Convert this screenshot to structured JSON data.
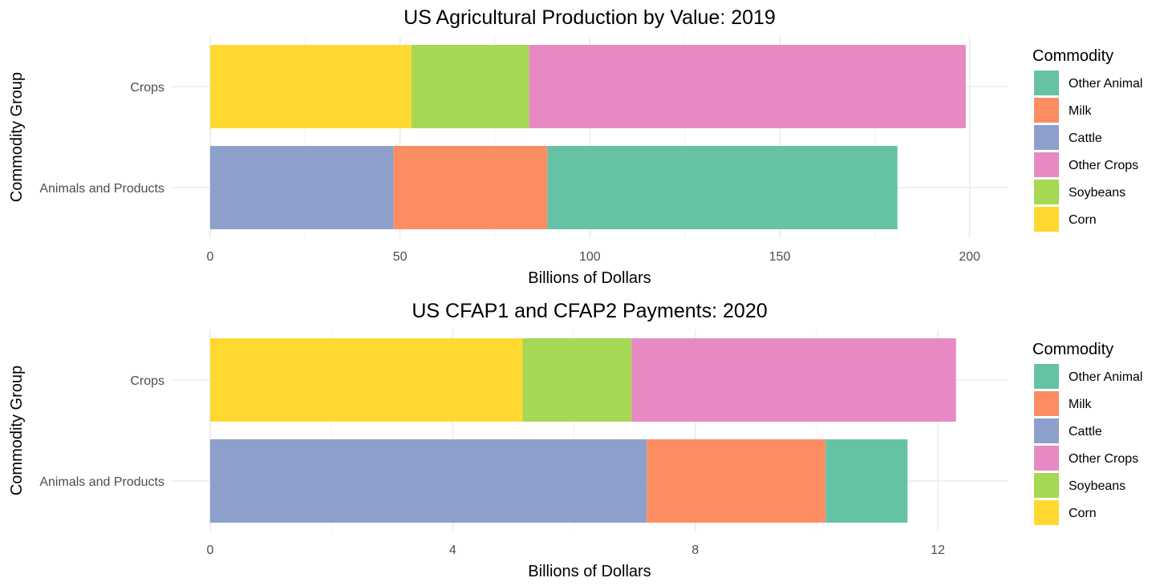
{
  "colors": {
    "Other Animal": "#66c2a5",
    "Milk": "#fc8d62",
    "Cattle": "#8da0cb",
    "Other Crops": "#e78ac3",
    "Soybeans": "#a6d854",
    "Corn": "#ffd92f"
  },
  "chart_data": [
    {
      "type": "bar",
      "orientation": "horizontal",
      "stacked": true,
      "title": "US Agricultural Production by Value: 2019",
      "xlabel": "Billions of Dollars",
      "ylabel": "Commodity Group",
      "xlim": [
        0,
        210
      ],
      "xticks": [
        0,
        50,
        100,
        150,
        200
      ],
      "xtick_labels": [
        "0",
        "50",
        "100",
        "150",
        "200"
      ],
      "categories": [
        "Crops",
        "Animals and Products"
      ],
      "legend_title": "Commodity",
      "legend": [
        "Other Animal",
        "Milk",
        "Cattle",
        "Other Crops",
        "Soybeans",
        "Corn"
      ],
      "legend_position": "right",
      "grid": true,
      "bars": [
        {
          "category": "Crops",
          "segments": [
            {
              "name": "Corn",
              "value": 53
            },
            {
              "name": "Soybeans",
              "value": 31
            },
            {
              "name": "Other Crops",
              "value": 115
            }
          ]
        },
        {
          "category": "Animals and Products",
          "segments": [
            {
              "name": "Cattle",
              "value": 48.3
            },
            {
              "name": "Milk",
              "value": 40.5
            },
            {
              "name": "Other Animal",
              "value": 92.2
            }
          ]
        }
      ]
    },
    {
      "type": "bar",
      "orientation": "horizontal",
      "stacked": true,
      "title": "US CFAP1 and CFAP2 Payments: 2020",
      "xlabel": "Billions of Dollars",
      "ylabel": "Commodity Group",
      "xlim": [
        0,
        13.15
      ],
      "xticks": [
        0,
        4,
        8,
        12
      ],
      "xtick_labels": [
        "0",
        "4",
        "8",
        "12"
      ],
      "categories": [
        "Crops",
        "Animals and Products"
      ],
      "legend_title": "Commodity",
      "legend": [
        "Other Animal",
        "Milk",
        "Cattle",
        "Other Crops",
        "Soybeans",
        "Corn"
      ],
      "legend_position": "right",
      "grid": true,
      "bars": [
        {
          "category": "Crops",
          "segments": [
            {
              "name": "Corn",
              "value": 5.15
            },
            {
              "name": "Soybeans",
              "value": 1.8
            },
            {
              "name": "Other Crops",
              "value": 5.35
            }
          ]
        },
        {
          "category": "Animals and Products",
          "segments": [
            {
              "name": "Cattle",
              "value": 7.2
            },
            {
              "name": "Milk",
              "value": 2.95
            },
            {
              "name": "Other Animal",
              "value": 1.35
            }
          ]
        }
      ]
    }
  ]
}
